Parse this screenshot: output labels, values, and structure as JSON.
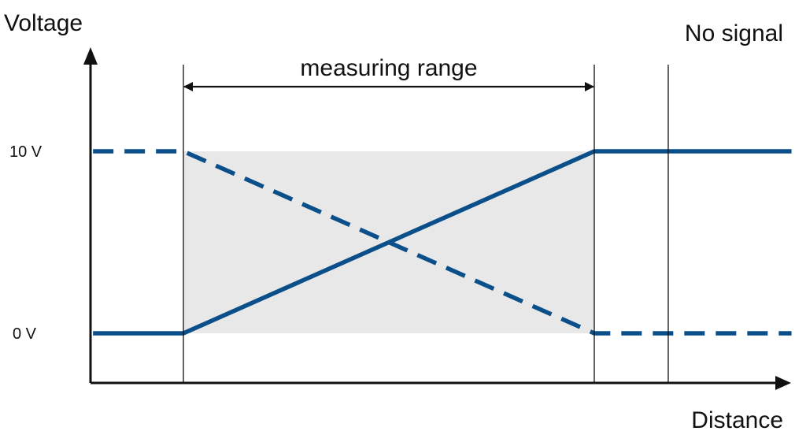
{
  "chart_data": {
    "type": "line",
    "ylabel": "Voltage",
    "xlabel": "Distance",
    "annotations": {
      "range": "measuring range",
      "no_signal": "No signal"
    },
    "yticks": [
      {
        "label": "10 V",
        "value": 10
      },
      {
        "label": "0 V",
        "value": 0
      }
    ],
    "ylim": [
      0,
      10
    ],
    "grid": false,
    "legend": "none",
    "regions": {
      "measuring_range": {
        "start": 0,
        "end": 1
      },
      "no_signal_start": 1.18
    },
    "x_range": [
      -0.22,
      1.48
    ],
    "series": [
      {
        "values": [
          [
            -0.22,
            0
          ],
          [
            0,
            0
          ],
          [
            1,
            10
          ],
          [
            1.48,
            10
          ]
        ],
        "style": "solid",
        "color": "#0b4f8a"
      },
      {
        "values": [
          [
            -0.22,
            10
          ],
          [
            0,
            10
          ],
          [
            1,
            0
          ],
          [
            1.48,
            0
          ]
        ],
        "style": "dashed",
        "color": "#0b4f8a"
      }
    ],
    "colors": {
      "shade": "#e8e8e8",
      "axis": "#111111",
      "series": "#0b4f8a"
    }
  }
}
